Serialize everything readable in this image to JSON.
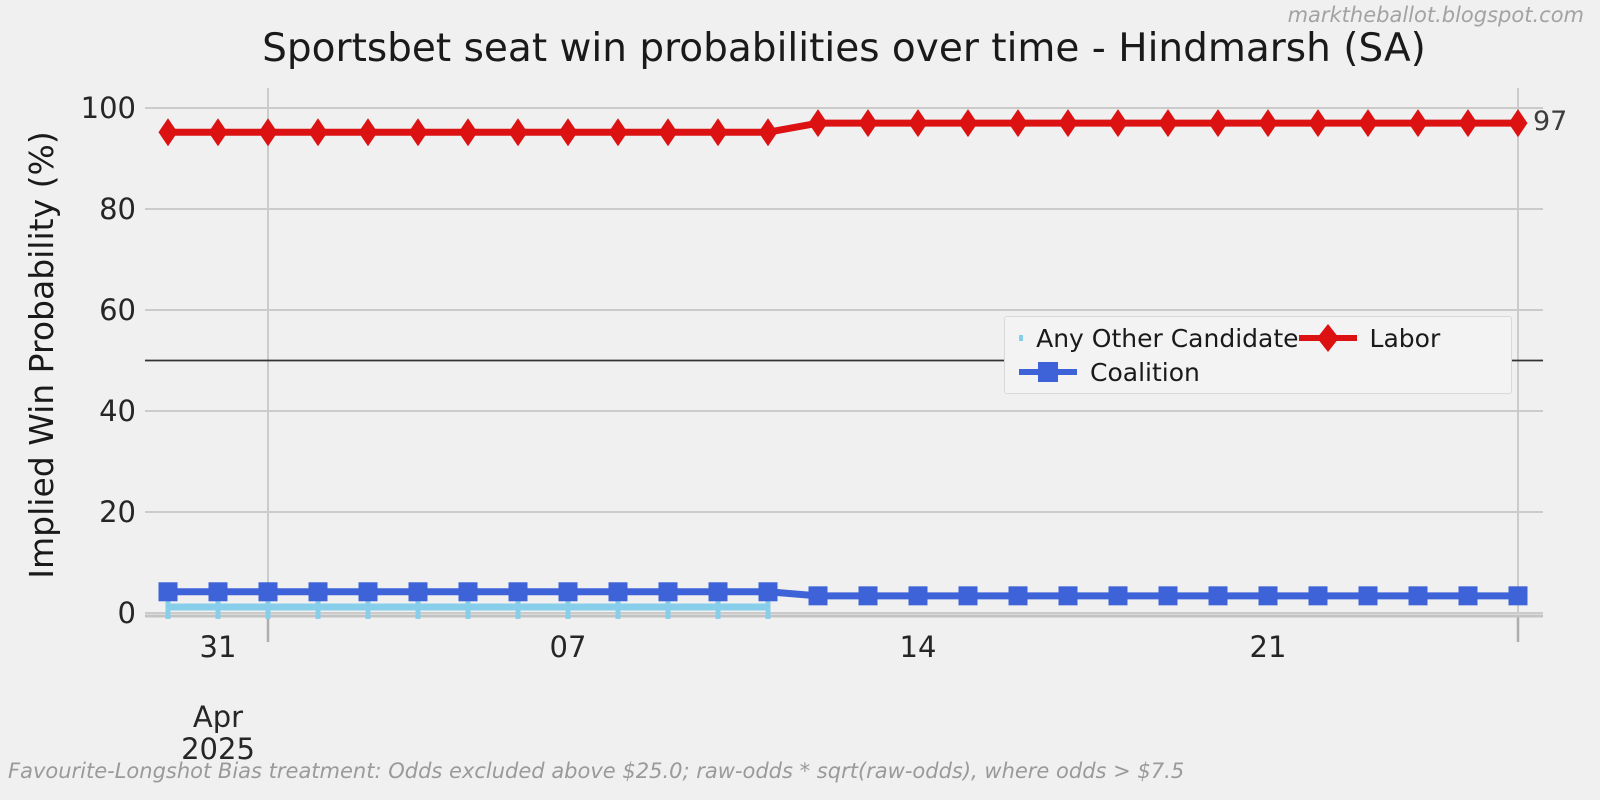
{
  "watermark": "marktheballot.blogspot.com",
  "footnote": "Favourite-Longshot Bias treatment: Odds excluded above $25.0; raw-odds * sqrt(raw-odds), where odds > $7.5",
  "chart_data": {
    "type": "line",
    "title": "Sportsbet seat win probabilities over time - Hindmarsh (SA)",
    "xlabel": "",
    "ylabel": "Implied Win Probability (%)",
    "ylim": [
      0,
      100
    ],
    "grid": true,
    "background_color": "#f0f0f0",
    "grid_color": "#cbcbcb",
    "reference_line_y": 50,
    "y_ticks": [
      0,
      20,
      40,
      60,
      80,
      100
    ],
    "x_dates": [
      "Mar 30",
      "Mar 31",
      "Apr 01",
      "Apr 02",
      "Apr 03",
      "Apr 04",
      "Apr 05",
      "Apr 06",
      "Apr 07",
      "Apr 08",
      "Apr 09",
      "Apr 10",
      "Apr 11",
      "Apr 12",
      "Apr 13",
      "Apr 14",
      "Apr 15",
      "Apr 16",
      "Apr 17",
      "Apr 18",
      "Apr 19",
      "Apr 20",
      "Apr 21",
      "Apr 22",
      "Apr 23",
      "Apr 24",
      "Apr 25",
      "Apr 26"
    ],
    "x_tick_labels": [
      {
        "label": "31",
        "index": 1
      },
      {
        "label": "07",
        "index": 8
      },
      {
        "label": "14",
        "index": 15
      },
      {
        "label": "21",
        "index": 22
      }
    ],
    "x_month_label": {
      "lines": [
        "Apr",
        "2025"
      ],
      "index": 1
    },
    "x_gridline_indices": [
      2,
      27
    ],
    "series": [
      {
        "name": "Any Other Candidate",
        "color": "#87ceeb",
        "marker": "plus",
        "values": [
          1.2,
          1.2,
          1.2,
          1.2,
          1.2,
          1.2,
          1.2,
          1.2,
          1.2,
          1.2,
          1.2,
          1.2,
          1.2,
          null,
          null,
          null,
          null,
          null,
          null,
          null,
          null,
          null,
          null,
          null,
          null,
          null,
          null,
          null
        ]
      },
      {
        "name": "Coalition",
        "color": "#3e63d8",
        "marker": "square",
        "values": [
          4.2,
          4.2,
          4.2,
          4.2,
          4.2,
          4.2,
          4.2,
          4.2,
          4.2,
          4.2,
          4.2,
          4.2,
          4.2,
          3.4,
          3.4,
          3.4,
          3.4,
          3.4,
          3.4,
          3.4,
          3.4,
          3.4,
          3.4,
          3.4,
          3.4,
          3.4,
          3.4,
          3.4
        ]
      },
      {
        "name": "Labor",
        "color": "#dc1212",
        "marker": "diamond",
        "values": [
          95.2,
          95.2,
          95.2,
          95.2,
          95.2,
          95.2,
          95.2,
          95.2,
          95.2,
          95.2,
          95.2,
          95.2,
          95.2,
          97,
          97,
          97,
          97,
          97,
          97,
          97,
          97,
          97,
          97,
          97,
          97,
          97,
          97,
          97
        ]
      }
    ],
    "end_label": {
      "text": "97",
      "series": "Labor"
    },
    "legend": {
      "position": "center right",
      "entries": [
        "Any Other Candidate",
        "Coalition",
        "Labor"
      ]
    }
  }
}
